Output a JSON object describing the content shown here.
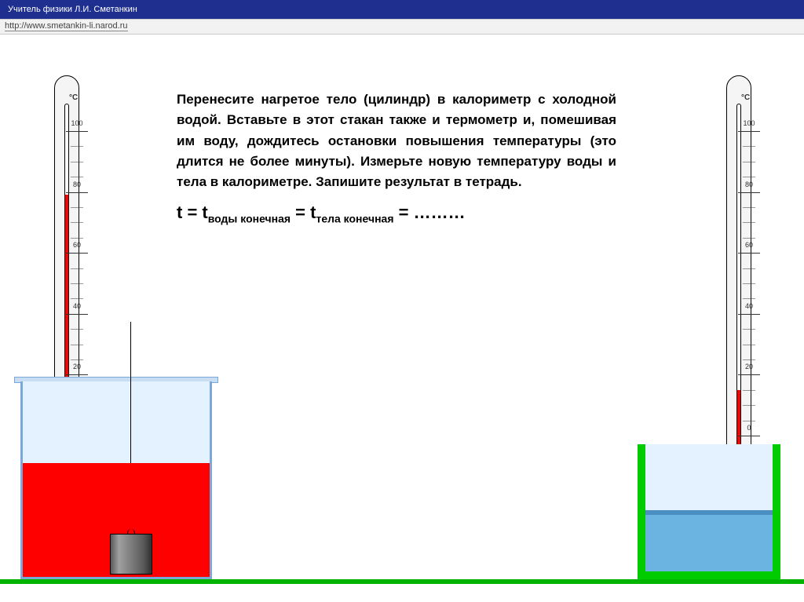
{
  "header": {
    "title": "Учитель физики Л.И. Сметанкин"
  },
  "url": "http://www.smetankin-li.narod.ru",
  "instructions": {
    "text": "Перенесите нагретое тело (цилиндр) в калориметр с холодной водой. Вставьте в этот стакан также и термометр и, помешивая им воду, дождитесь остановки повышения температуры (это длится не более минуты). Измерьте новую температуру воды и тела в калориметре. Запишите результат в тетрадь."
  },
  "formula": {
    "t": "t = t",
    "sub1": "воды конечная",
    "eq": " = t",
    "sub2": "тела конечная",
    "tail": " = ………"
  },
  "thermometer": {
    "unit": "°C",
    "scale_labels": [
      "100",
      "80",
      "60",
      "40",
      "20",
      "0"
    ],
    "left_reading_pct": 88,
    "right_reading_pct": 24,
    "mercury_color": "#ff0000",
    "body_color": "#f5f5f5"
  },
  "beaker1": {
    "liquid_color": "#ff0000",
    "glass_color": "#e4f2ff",
    "border_color": "#7aa8d8",
    "weight_color": "#606060"
  },
  "beaker2": {
    "frame_color": "#00cc00",
    "liquid_color": "#6bb3e0",
    "glass_color": "#e4f2ff"
  },
  "ground_color": "#00b400",
  "header_bg": "#1e2f8f"
}
